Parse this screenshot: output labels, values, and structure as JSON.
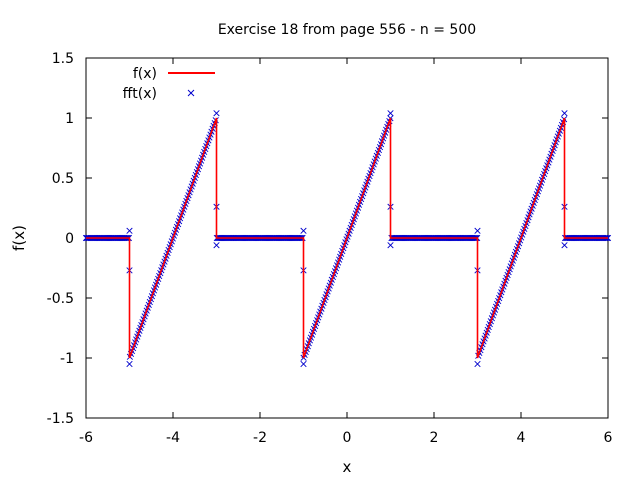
{
  "chart_data": {
    "type": "line",
    "title": "Exercise 18 from page 556 - n = 500",
    "xlabel": "x",
    "ylabel": "f(x)",
    "xlim": [
      -6,
      6
    ],
    "ylim": [
      -1.5,
      1.5
    ],
    "x_ticks": [
      "-6",
      "-4",
      "-2",
      "0",
      "2",
      "4",
      "6"
    ],
    "y_ticks": [
      "-1.5",
      "-1",
      "-0.5",
      "0",
      "0.5",
      "1",
      "1.5"
    ],
    "grid": false,
    "legend_position": "top-left",
    "colors": {
      "f": "#ff0000",
      "fft": "#0000cc"
    },
    "series": [
      {
        "name": "f(x)",
        "style": "line",
        "x": [
          -6,
          -5,
          -5,
          -3,
          -3,
          -1,
          -1,
          1,
          1,
          3,
          3,
          5,
          5,
          6
        ],
        "y": [
          0,
          0,
          -1,
          1,
          0,
          0,
          -1,
          1,
          0,
          0,
          -1,
          1,
          0,
          0
        ]
      },
      {
        "name": "fft(x)",
        "style": "points",
        "marker": "x",
        "samples": 500,
        "gibbs_points": [
          {
            "x": -5,
            "y": -0.27
          },
          {
            "x": -5,
            "y": 0.06
          },
          {
            "x": -5,
            "y": -1.05
          },
          {
            "x": -3,
            "y": 1.04
          },
          {
            "x": -3,
            "y": 0.26
          },
          {
            "x": -3,
            "y": -0.06
          },
          {
            "x": -1,
            "y": -0.27
          },
          {
            "x": -1,
            "y": 0.06
          },
          {
            "x": -1,
            "y": -1.05
          },
          {
            "x": 1,
            "y": 1.04
          },
          {
            "x": 1,
            "y": 0.26
          },
          {
            "x": 1,
            "y": -0.06
          },
          {
            "x": 3,
            "y": -0.27
          },
          {
            "x": 3,
            "y": 0.06
          },
          {
            "x": 3,
            "y": -1.05
          },
          {
            "x": 5,
            "y": 1.04
          },
          {
            "x": 5,
            "y": 0.26
          },
          {
            "x": 5,
            "y": -0.06
          }
        ]
      }
    ]
  }
}
